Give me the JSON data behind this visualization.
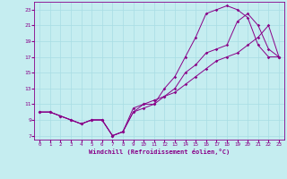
{
  "xlabel": "Windchill (Refroidissement éolien,°C)",
  "bg_color": "#c5edf0",
  "grid_color": "#a8dde4",
  "line_color": "#880088",
  "xlim": [
    -0.5,
    23.5
  ],
  "ylim": [
    6.5,
    24
  ],
  "xticks": [
    0,
    1,
    2,
    3,
    4,
    5,
    6,
    7,
    8,
    9,
    10,
    11,
    12,
    13,
    14,
    15,
    16,
    17,
    18,
    19,
    20,
    21,
    22,
    23
  ],
  "yticks": [
    7,
    9,
    11,
    13,
    15,
    17,
    19,
    21,
    23
  ],
  "line1_x": [
    0,
    1,
    2,
    3,
    4,
    5,
    6,
    7,
    8,
    9,
    10,
    11,
    12,
    13,
    14,
    15,
    16,
    17,
    18,
    19,
    20,
    21,
    22,
    23
  ],
  "line1_y": [
    10,
    10,
    9.5,
    9,
    8.5,
    9,
    9,
    7,
    7.5,
    10.5,
    11,
    11,
    13,
    14.5,
    17,
    19.5,
    22.5,
    23,
    23.5,
    23,
    22,
    18.5,
    17,
    17
  ],
  "line2_x": [
    0,
    1,
    2,
    3,
    4,
    5,
    6,
    7,
    8,
    9,
    10,
    11,
    12,
    13,
    14,
    15,
    16,
    17,
    18,
    19,
    20,
    21,
    22,
    23
  ],
  "line2_y": [
    10,
    10,
    9.5,
    9,
    8.5,
    9,
    9,
    7,
    7.5,
    10,
    11,
    11.5,
    12,
    13,
    15,
    16,
    17.5,
    18,
    18.5,
    21.5,
    22.5,
    21,
    18,
    17
  ],
  "line3_x": [
    0,
    1,
    2,
    3,
    4,
    5,
    6,
    7,
    8,
    9,
    10,
    11,
    12,
    13,
    14,
    15,
    16,
    17,
    18,
    19,
    20,
    21,
    22,
    23
  ],
  "line3_y": [
    10,
    10,
    9.5,
    9,
    8.5,
    9,
    9,
    7,
    7.5,
    10,
    10.5,
    11,
    12,
    12.5,
    13.5,
    14.5,
    15.5,
    16.5,
    17,
    17.5,
    18.5,
    19.5,
    21,
    17
  ]
}
